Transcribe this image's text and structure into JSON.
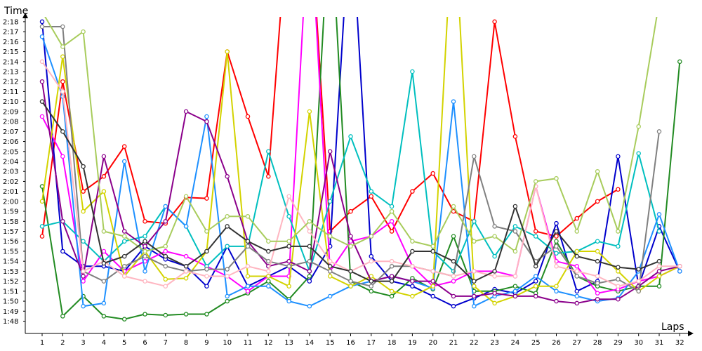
{
  "chart_data": {
    "type": "line",
    "title": "",
    "xlabel": "Laps",
    "ylabel": "Time",
    "x": [
      1,
      2,
      3,
      4,
      5,
      6,
      7,
      8,
      9,
      10,
      11,
      12,
      13,
      14,
      15,
      16,
      17,
      18,
      19,
      20,
      21,
      22,
      23,
      24,
      25,
      26,
      27,
      28,
      29,
      30,
      31,
      32
    ],
    "x_ticks": [
      "1",
      "2",
      "3",
      "4",
      "5",
      "6",
      "7",
      "8",
      "9",
      "10",
      "11",
      "12",
      "13",
      "14",
      "15",
      "16",
      "17",
      "18",
      "19",
      "20",
      "21",
      "22",
      "23",
      "24",
      "25",
      "26",
      "27",
      "28",
      "29",
      "30",
      "31",
      "32"
    ],
    "y_unit": "seconds",
    "ylim": [
      106,
      140
    ],
    "y_ticks": [
      {
        "value": 108,
        "label": "1:48"
      },
      {
        "value": 109,
        "label": "1:49"
      },
      {
        "value": 110,
        "label": "1:50"
      },
      {
        "value": 111,
        "label": "1:51"
      },
      {
        "value": 112,
        "label": "1:52"
      },
      {
        "value": 113,
        "label": "1:53"
      },
      {
        "value": 114,
        "label": "1:54"
      },
      {
        "value": 115,
        "label": "1:55"
      },
      {
        "value": 116,
        "label": "1:56"
      },
      {
        "value": 117,
        "label": "1:57"
      },
      {
        "value": 118,
        "label": "1:58"
      },
      {
        "value": 119,
        "label": "1:59"
      },
      {
        "value": 120,
        "label": "2:00"
      },
      {
        "value": 121,
        "label": "2:01"
      },
      {
        "value": 122,
        "label": "2:02"
      },
      {
        "value": 123,
        "label": "2:03"
      },
      {
        "value": 124,
        "label": "2:04"
      },
      {
        "value": 125,
        "label": "2:05"
      },
      {
        "value": 126,
        "label": "2:06"
      },
      {
        "value": 127,
        "label": "2:07"
      },
      {
        "value": 128,
        "label": "2:08"
      },
      {
        "value": 129,
        "label": "2:09"
      },
      {
        "value": 130,
        "label": "2:10"
      },
      {
        "value": 131,
        "label": "2:11"
      },
      {
        "value": 132,
        "label": "2:12"
      },
      {
        "value": 133,
        "label": "2:13"
      },
      {
        "value": 134,
        "label": "2:14"
      },
      {
        "value": 135,
        "label": "2:15"
      },
      {
        "value": 136,
        "label": "2:16"
      },
      {
        "value": 137,
        "label": "2:17"
      },
      {
        "value": 138,
        "label": "2:18"
      }
    ],
    "grid": false,
    "legend": "none",
    "series": [
      {
        "color": "#ff0000",
        "values": [
          116.5,
          132,
          121,
          122.5,
          125.5,
          118,
          117.8,
          120.4,
          120.3,
          135,
          128.5,
          122.5,
          150,
          150,
          117,
          119,
          120.5,
          117,
          121,
          122.8,
          119,
          118,
          138,
          126.5,
          117,
          116.5,
          118.3,
          120,
          121.2,
          null,
          null,
          null
        ]
      },
      {
        "color": "#0000cc",
        "values": [
          138,
          115,
          113.5,
          113.5,
          113,
          115.5,
          114.2,
          113.5,
          111.5,
          115.5,
          111.5,
          112.5,
          113.5,
          112,
          115.5,
          150,
          114.5,
          112,
          111.5,
          110.5,
          109.5,
          110.3,
          111.2,
          110.8,
          112,
          117.8,
          111,
          112,
          124.5,
          111.5,
          117.5,
          113
        ]
      },
      {
        "color": "#228b22",
        "values": [
          121.5,
          108.5,
          110.5,
          108.5,
          108.2,
          108.7,
          108.6,
          108.7,
          108.7,
          110,
          110.8,
          112,
          110.2,
          112.5,
          150,
          112,
          111,
          110.5,
          112.3,
          111.2,
          116.5,
          111,
          111,
          111.5,
          110.8,
          116,
          112.5,
          111.5,
          111,
          111.5,
          111.5,
          134
        ]
      },
      {
        "color": "#ff00ff",
        "values": [
          128.5,
          124.5,
          112,
          115,
          113,
          114,
          115,
          114.5,
          113.5,
          112.5,
          111,
          112.5,
          112.5,
          150,
          113,
          116,
          116.5,
          118,
          113.5,
          111.5,
          112,
          113,
          113,
          112.5,
          121.5,
          114,
          113.5,
          110.8,
          111.2,
          112,
          112.5,
          113.5
        ]
      },
      {
        "color": "#00bfbf",
        "values": [
          117.5,
          118,
          116,
          114,
          116,
          116.5,
          119.5,
          117.5,
          113.5,
          115.5,
          115.5,
          125,
          118.5,
          113,
          120,
          126.5,
          121,
          119.5,
          133,
          115,
          113,
          118,
          114.5,
          117.5,
          116.5,
          114.8,
          115,
          116,
          115.5,
          124.8,
          117,
          null
        ]
      },
      {
        "color": "#1e90ff",
        "values": [
          136.5,
          130.5,
          109.5,
          109.8,
          124,
          113,
          119.5,
          117.5,
          128.5,
          110.5,
          111.5,
          111.5,
          110,
          109.5,
          110.5,
          111.5,
          112,
          112.5,
          112,
          111.3,
          130,
          109.5,
          110.5,
          111,
          112.5,
          111,
          110.5,
          110,
          110.3,
          113,
          118.7,
          113
        ]
      },
      {
        "color": "#d3d300",
        "values": [
          120,
          134.5,
          119,
          121,
          112.5,
          115,
          112.2,
          112.3,
          115,
          135,
          112.5,
          112.5,
          111.5,
          129,
          112.5,
          111.5,
          112.5,
          111,
          110.5,
          111.5,
          150,
          111.5,
          109.8,
          110.5,
          111.5,
          111.5,
          115,
          115,
          113,
          111,
          112.5,
          113.5
        ]
      },
      {
        "color": "#8b008b",
        "values": [
          132,
          118,
          112.5,
          124.5,
          117,
          115.5,
          118,
          129,
          128,
          122.5,
          116,
          113.5,
          114,
          113,
          125,
          116.5,
          112,
          112.5,
          112,
          112,
          110.5,
          110.5,
          110.8,
          110.5,
          110.5,
          110,
          109.8,
          110.2,
          110.2,
          111.5,
          113,
          113.5
        ]
      },
      {
        "color": "#808080",
        "values": [
          137.5,
          137.5,
          113,
          112,
          113.5,
          114.5,
          113.5,
          113,
          113.2,
          113.2,
          115.5,
          114,
          113.5,
          114,
          113,
          112,
          111.5,
          113.5,
          113.5,
          113,
          112.5,
          124.5,
          117.5,
          117,
          114,
          115.5,
          112.5,
          111.8,
          112.2,
          111,
          127,
          null
        ]
      },
      {
        "color": "#ffb6c1",
        "values": [
          134,
          131,
          113,
          114,
          112.5,
          112,
          111.5,
          113,
          112.5,
          112.5,
          113.5,
          113,
          120.5,
          117,
          114,
          113,
          114,
          114,
          113.5,
          113,
          112.5,
          113,
          112.5,
          112.5,
          121.5,
          113.5,
          113,
          112.5,
          111.5,
          112,
          113.5,
          113.5
        ]
      },
      {
        "color": "#a8cc5c",
        "values": [
          139,
          135.5,
          137,
          117,
          116.5,
          115,
          115.5,
          120.5,
          117,
          118.5,
          118.5,
          116,
          116,
          118,
          116.5,
          115.5,
          116.5,
          119,
          116,
          115.5,
          119.5,
          116,
          116.5,
          115,
          122,
          122.3,
          117,
          123,
          117,
          127.5,
          140,
          null
        ]
      },
      {
        "color": "#333333",
        "values": [
          130,
          127,
          123.5,
          113.8,
          114.5,
          116,
          114.5,
          113.5,
          115,
          117.5,
          116,
          115,
          115.5,
          115.5,
          113.5,
          113,
          112,
          112,
          115,
          115,
          114,
          112,
          113,
          119.5,
          113.5,
          117,
          114.5,
          114,
          113.4,
          113.2,
          114,
          null
        ]
      }
    ]
  }
}
